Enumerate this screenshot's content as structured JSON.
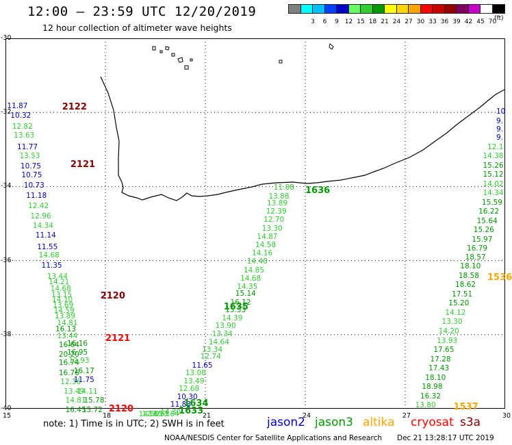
{
  "header": {
    "title": "12:00 – 23:59 UTC 12/20/2019",
    "subtitle": "12 hour collection of altimeter wave heights",
    "unit": "(ft)"
  },
  "scale": {
    "bins": [
      {
        "color": "#808080",
        "label": ""
      },
      {
        "color": "#00ffff",
        "label": "3"
      },
      {
        "color": "#00bfff",
        "label": "6"
      },
      {
        "color": "#0040ff",
        "label": "9"
      },
      {
        "color": "#0000c8",
        "label": "12"
      },
      {
        "color": "#66ff66",
        "label": "15"
      },
      {
        "color": "#33cc33",
        "label": "18"
      },
      {
        "color": "#009900",
        "label": "21"
      },
      {
        "color": "#ffff00",
        "label": "24"
      },
      {
        "color": "#ffd700",
        "label": "27"
      },
      {
        "color": "#ffa500",
        "label": "30"
      },
      {
        "color": "#ff0000",
        "label": "33"
      },
      {
        "color": "#c80000",
        "label": "36"
      },
      {
        "color": "#960000",
        "label": "39"
      },
      {
        "color": "#800060",
        "label": "42"
      },
      {
        "color": "#c800c8",
        "label": "45"
      },
      {
        "color": "#ffffff",
        "label": "70"
      },
      {
        "color": "#000000",
        "label": ""
      }
    ]
  },
  "axes": {
    "lat": [
      "-30",
      "-32",
      "-34",
      "-36",
      "-38",
      "-40"
    ],
    "lon": [
      "15",
      "18",
      "21",
      "24",
      "27",
      "30"
    ]
  },
  "colors": {
    "jason2": "#0000c8",
    "jason3": "#33cc33",
    "jason3_dark": "#009900",
    "altika": "#ffa500",
    "cryosat": "#ff0000",
    "s3a": "#800000",
    "red_dark": "#800000"
  },
  "passes": [
    {
      "text": "2122",
      "color": "#800000",
      "lon": 16.7,
      "lat": -31.85
    },
    {
      "text": "2121",
      "color": "#800000",
      "lon": 16.95,
      "lat": -33.4
    },
    {
      "text": "2120",
      "color": "#800000",
      "lon": 17.85,
      "lat": -36.95
    },
    {
      "text": "2121",
      "color": "#ff0000",
      "lon": 18.0,
      "lat": -38.1
    },
    {
      "text": "2120",
      "color": "#ff0000",
      "lon": 18.1,
      "lat": -40.0
    },
    {
      "text": "1636",
      "color": "#009900",
      "lon": 24.0,
      "lat": -34.1
    },
    {
      "text": "1635",
      "color": "#009900",
      "lon": 21.55,
      "lat": -37.25
    },
    {
      "text": "1634",
      "color": "#009900",
      "lon": 20.35,
      "lat": -39.85
    },
    {
      "text": "1633",
      "color": "#009900",
      "lon": 20.2,
      "lat": -40.05
    },
    {
      "text": "1537",
      "color": "#ffa500",
      "lon": 28.45,
      "lat": -39.95
    },
    {
      "text": "1536",
      "color": "#ffa500",
      "lon": 29.8,
      "lat": -36.45
    }
  ],
  "left_track": [
    {
      "text": "11.87",
      "color": "#0000c8",
      "lon": 15.05,
      "lat": -31.85
    },
    {
      "text": "10.32",
      "color": "#0000c8",
      "lon": 15.15,
      "lat": -32.1
    },
    {
      "text": "12.82",
      "color": "#33cc33",
      "lon": 15.2,
      "lat": -32.4
    },
    {
      "text": "13.63",
      "color": "#33cc33",
      "lon": 15.25,
      "lat": -32.65
    },
    {
      "text": "11.77",
      "color": "#0000c8",
      "lon": 15.35,
      "lat": -32.95
    },
    {
      "text": "13.53",
      "color": "#33cc33",
      "lon": 15.42,
      "lat": -33.2
    },
    {
      "text": "10.75",
      "color": "#0000c8",
      "lon": 15.45,
      "lat": -33.48
    },
    {
      "text": "10.75",
      "color": "#0000c8",
      "lon": 15.48,
      "lat": -33.72
    },
    {
      "text": "10.73",
      "color": "#0000c8",
      "lon": 15.55,
      "lat": -34.0
    },
    {
      "text": "11.18",
      "color": "#0000c8",
      "lon": 15.62,
      "lat": -34.27
    },
    {
      "text": "12.42",
      "color": "#33cc33",
      "lon": 15.68,
      "lat": -34.55
    },
    {
      "text": "12.96",
      "color": "#33cc33",
      "lon": 15.75,
      "lat": -34.82
    },
    {
      "text": "14.34",
      "color": "#33cc33",
      "lon": 15.82,
      "lat": -35.08
    },
    {
      "text": "11.14",
      "color": "#0000c8",
      "lon": 15.9,
      "lat": -35.35
    },
    {
      "text": "11.55",
      "color": "#0000c8",
      "lon": 15.95,
      "lat": -35.65
    },
    {
      "text": "14.68",
      "color": "#33cc33",
      "lon": 16.0,
      "lat": -35.88
    },
    {
      "text": "11.35",
      "color": "#0000c8",
      "lon": 16.08,
      "lat": -36.15
    },
    {
      "text": "13.44",
      "color": "#33cc33",
      "lon": 16.25,
      "lat": -36.45
    },
    {
      "text": "14.21",
      "color": "#33cc33",
      "lon": 16.3,
      "lat": -36.6
    },
    {
      "text": "14.68",
      "color": "#33cc33",
      "lon": 16.35,
      "lat": -36.78
    },
    {
      "text": "13.15",
      "color": "#33cc33",
      "lon": 16.38,
      "lat": -36.95
    },
    {
      "text": "14.10",
      "color": "#33cc33",
      "lon": 16.4,
      "lat": -37.08
    },
    {
      "text": "13.69",
      "color": "#33cc33",
      "lon": 16.42,
      "lat": -37.22
    },
    {
      "text": "14.59",
      "color": "#33cc33",
      "lon": 16.45,
      "lat": -37.38
    },
    {
      "text": "13.89",
      "color": "#33cc33",
      "lon": 16.48,
      "lat": -37.52
    },
    {
      "text": "14.81",
      "color": "#33cc33",
      "lon": 16.55,
      "lat": -37.7
    },
    {
      "text": "16.13",
      "color": "#009900",
      "lon": 16.5,
      "lat": -37.87
    },
    {
      "text": "13.44",
      "color": "#33cc33",
      "lon": 16.55,
      "lat": -38.05
    },
    {
      "text": "16.16",
      "color": "#009900",
      "lon": 16.85,
      "lat": -38.27
    },
    {
      "text": "16.64",
      "color": "#009900",
      "lon": 16.6,
      "lat": -38.3
    },
    {
      "text": "20.20",
      "color": "#009900",
      "lon": 16.6,
      "lat": -38.55
    },
    {
      "text": "16.95",
      "color": "#009900",
      "lon": 16.85,
      "lat": -38.5
    },
    {
      "text": "12.93",
      "color": "#33cc33",
      "lon": 16.9,
      "lat": -38.72
    },
    {
      "text": "16.74",
      "color": "#009900",
      "lon": 16.6,
      "lat": -38.78
    },
    {
      "text": "16.76",
      "color": "#009900",
      "lon": 16.6,
      "lat": -39.05
    },
    {
      "text": "16.17",
      "color": "#009900",
      "lon": 17.05,
      "lat": -39.0
    },
    {
      "text": "12.36",
      "color": "#33cc33",
      "lon": 16.65,
      "lat": -39.3
    },
    {
      "text": "11.75",
      "color": "#0000c8",
      "lon": 17.05,
      "lat": -39.25
    },
    {
      "text": "13.49",
      "color": "#33cc33",
      "lon": 16.75,
      "lat": -39.55
    },
    {
      "text": "14.11",
      "color": "#33cc33",
      "lon": 17.15,
      "lat": -39.55
    },
    {
      "text": "14.81",
      "color": "#33cc33",
      "lon": 16.8,
      "lat": -39.8
    },
    {
      "text": "15.78",
      "color": "#009900",
      "lon": 17.35,
      "lat": -39.8
    },
    {
      "text": "16.45",
      "color": "#009900",
      "lon": 16.8,
      "lat": -40.05
    },
    {
      "text": "15.72",
      "color": "#009900",
      "lon": 17.3,
      "lat": -40.05
    }
  ],
  "middle_track": [
    {
      "text": "11.88",
      "color": "#33cc33",
      "lon": 23.05,
      "lat": -34.05
    },
    {
      "text": "13.88",
      "color": "#33cc33",
      "lon": 22.9,
      "lat": -34.28
    },
    {
      "text": "13.89",
      "color": "#33cc33",
      "lon": 22.85,
      "lat": -34.48
    },
    {
      "text": "12.39",
      "color": "#33cc33",
      "lon": 22.82,
      "lat": -34.7
    },
    {
      "text": "12.70",
      "color": "#33cc33",
      "lon": 22.75,
      "lat": -34.92
    },
    {
      "text": "13.30",
      "color": "#33cc33",
      "lon": 22.7,
      "lat": -35.15
    },
    {
      "text": "14.87",
      "color": "#33cc33",
      "lon": 22.55,
      "lat": -35.38
    },
    {
      "text": "14.58",
      "color": "#33cc33",
      "lon": 22.5,
      "lat": -35.6
    },
    {
      "text": "14.16",
      "color": "#33cc33",
      "lon": 22.4,
      "lat": -35.83
    },
    {
      "text": "14.40",
      "color": "#33cc33",
      "lon": 22.25,
      "lat": -36.05
    },
    {
      "text": "14.85",
      "color": "#33cc33",
      "lon": 22.15,
      "lat": -36.28
    },
    {
      "text": "14.68",
      "color": "#33cc33",
      "lon": 22.05,
      "lat": -36.5
    },
    {
      "text": "14.35",
      "color": "#33cc33",
      "lon": 21.95,
      "lat": -36.72
    },
    {
      "text": "15.14",
      "color": "#009900",
      "lon": 21.9,
      "lat": -36.92
    },
    {
      "text": "16.12",
      "color": "#009900",
      "lon": 21.75,
      "lat": -37.15
    },
    {
      "text": "15.33",
      "color": "#009900",
      "lon": 21.6,
      "lat": -37.35
    },
    {
      "text": "14.39",
      "color": "#33cc33",
      "lon": 21.5,
      "lat": -37.57
    },
    {
      "text": "13.90",
      "color": "#33cc33",
      "lon": 21.3,
      "lat": -37.78
    },
    {
      "text": "13.34",
      "color": "#33cc33",
      "lon": 21.2,
      "lat": -38.0
    },
    {
      "text": "14.64",
      "color": "#33cc33",
      "lon": 21.1,
      "lat": -38.22
    },
    {
      "text": "13.34",
      "color": "#33cc33",
      "lon": 20.9,
      "lat": -38.42
    },
    {
      "text": "12.74",
      "color": "#33cc33",
      "lon": 20.85,
      "lat": -38.62
    },
    {
      "text": "11.65",
      "color": "#0000c8",
      "lon": 20.6,
      "lat": -38.85
    },
    {
      "text": "13.08",
      "color": "#33cc33",
      "lon": 20.4,
      "lat": -39.05
    },
    {
      "text": "13.49",
      "color": "#33cc33",
      "lon": 20.35,
      "lat": -39.27
    },
    {
      "text": "12.68",
      "color": "#33cc33",
      "lon": 20.2,
      "lat": -39.48
    },
    {
      "text": "10.30",
      "color": "#0000c8",
      "lon": 20.15,
      "lat": -39.7
    },
    {
      "text": "11.83",
      "color": "#0000c8",
      "lon": 19.95,
      "lat": -39.9
    },
    {
      "text": "14.30",
      "color": "#33cc33",
      "lon": 19.65,
      "lat": -40.12
    },
    {
      "text": "13.84",
      "color": "#33cc33",
      "lon": 19.6,
      "lat": -40.33
    },
    {
      "text": "13.63",
      "color": "#33cc33",
      "lon": 19.3,
      "lat": -40.52
    },
    {
      "text": "12.65",
      "color": "#33cc33",
      "lon": 19.1,
      "lat": -40.75
    },
    {
      "text": "14.50",
      "color": "#33cc33",
      "lon": 19.0,
      "lat": -40.97
    }
  ],
  "right_track": [
    {
      "text": "10",
      "color": "#0000c8",
      "lon": 29.95,
      "lat": -32.0
    },
    {
      "text": "9.",
      "color": "#0000c8",
      "lon": 29.95,
      "lat": -32.25
    },
    {
      "text": "9.",
      "color": "#0000c8",
      "lon": 29.95,
      "lat": -32.48
    },
    {
      "text": "9.",
      "color": "#0000c8",
      "lon": 29.8,
      "lat": -32.7
    },
    {
      "text": "12.1",
      "color": "#33cc33",
      "lon": 29.7,
      "lat": -32.95
    },
    {
      "text": "14.38",
      "color": "#33cc33",
      "lon": 29.65,
      "lat": -33.2
    },
    {
      "text": "15.26",
      "color": "#009900",
      "lon": 29.55,
      "lat": -33.45
    },
    {
      "text": "15.12",
      "color": "#009900",
      "lon": 29.5,
      "lat": -33.7
    },
    {
      "text": "14.02",
      "color": "#33cc33",
      "lon": 29.45,
      "lat": -33.95
    },
    {
      "text": "14.34",
      "color": "#33cc33",
      "lon": 29.4,
      "lat": -34.2
    },
    {
      "text": "15.59",
      "color": "#009900",
      "lon": 29.3,
      "lat": -34.45
    },
    {
      "text": "16.22",
      "color": "#009900",
      "lon": 29.2,
      "lat": -34.7
    },
    {
      "text": "15.64",
      "color": "#009900",
      "lon": 29.15,
      "lat": -34.95
    },
    {
      "text": "15.26",
      "color": "#009900",
      "lon": 29.05,
      "lat": -35.2
    },
    {
      "text": "15.97",
      "color": "#009900",
      "lon": 29.0,
      "lat": -35.45
    },
    {
      "text": "16.79",
      "color": "#009900",
      "lon": 28.85,
      "lat": -35.7
    },
    {
      "text": "18.57",
      "color": "#009900",
      "lon": 28.8,
      "lat": -35.93
    },
    {
      "text": "18.10",
      "color": "#009900",
      "lon": 28.65,
      "lat": -36.18
    },
    {
      "text": "18.58",
      "color": "#009900",
      "lon": 28.6,
      "lat": -36.43
    },
    {
      "text": "18.62",
      "color": "#009900",
      "lon": 28.5,
      "lat": -36.68
    },
    {
      "text": "17.51",
      "color": "#009900",
      "lon": 28.4,
      "lat": -36.93
    },
    {
      "text": "15.20",
      "color": "#009900",
      "lon": 28.3,
      "lat": -37.18
    },
    {
      "text": "14.12",
      "color": "#33cc33",
      "lon": 28.2,
      "lat": -37.43
    },
    {
      "text": "13.30",
      "color": "#33cc33",
      "lon": 28.1,
      "lat": -37.68
    },
    {
      "text": "14.20",
      "color": "#33cc33",
      "lon": 28.0,
      "lat": -37.93
    },
    {
      "text": "13.93",
      "color": "#33cc33",
      "lon": 27.95,
      "lat": -38.18
    },
    {
      "text": "17.65",
      "color": "#009900",
      "lon": 27.85,
      "lat": -38.43
    },
    {
      "text": "17.28",
      "color": "#009900",
      "lon": 27.75,
      "lat": -38.68
    },
    {
      "text": "17.43",
      "color": "#009900",
      "lon": 27.7,
      "lat": -38.93
    },
    {
      "text": "18.10",
      "color": "#009900",
      "lon": 27.6,
      "lat": -39.18
    },
    {
      "text": "18.98",
      "color": "#009900",
      "lon": 27.5,
      "lat": -39.43
    },
    {
      "text": "16.32",
      "color": "#009900",
      "lon": 27.45,
      "lat": -39.68
    },
    {
      "text": "13.80",
      "color": "#33cc33",
      "lon": 27.3,
      "lat": -39.93
    }
  ],
  "footer": {
    "note": "note:  1) Time is in UTC;  2) SWH is in feet",
    "legend": [
      {
        "text": "jason2",
        "color": "#0000c8"
      },
      {
        "text": "jason3",
        "color": "#009900"
      },
      {
        "text": "altika",
        "color": "#ffa500"
      },
      {
        "text": "cryosat",
        "color": "#ff0000"
      },
      {
        "text": "s3a",
        "color": "#800000"
      }
    ],
    "credit": "NOAA/NESDIS Center for Satellite Applications and Research",
    "stamp": "Dec 21 13:28:17 UTC 2019"
  }
}
